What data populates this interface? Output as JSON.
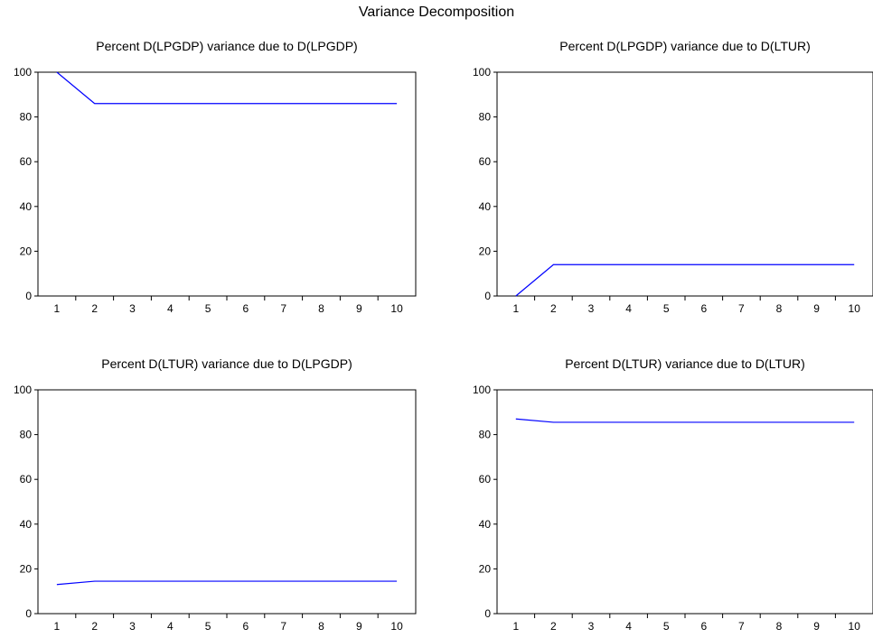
{
  "title": "Variance Decomposition",
  "colors": {
    "line": "#0000ff",
    "axis": "#000000"
  },
  "chart_data": [
    {
      "type": "line",
      "title": "Percent D(LPGDP) variance due to D(LPGDP)",
      "categories": [
        "1",
        "2",
        "3",
        "4",
        "5",
        "6",
        "7",
        "8",
        "9",
        "10"
      ],
      "ylim": [
        0,
        100
      ],
      "yticks": [
        "0",
        "20",
        "40",
        "60",
        "80",
        "100"
      ],
      "series": [
        {
          "values": [
            100,
            86,
            86,
            86,
            86,
            86,
            86,
            86,
            86,
            86
          ]
        }
      ]
    },
    {
      "type": "line",
      "title": "Percent D(LPGDP) variance due to D(LTUR)",
      "categories": [
        "1",
        "2",
        "3",
        "4",
        "5",
        "6",
        "7",
        "8",
        "9",
        "10"
      ],
      "ylim": [
        0,
        100
      ],
      "yticks": [
        "0",
        "20",
        "40",
        "60",
        "80",
        "100"
      ],
      "series": [
        {
          "values": [
            0,
            14,
            14,
            14,
            14,
            14,
            14,
            14,
            14,
            14
          ]
        }
      ]
    },
    {
      "type": "line",
      "title": "Percent D(LTUR) variance due to D(LPGDP)",
      "categories": [
        "1",
        "2",
        "3",
        "4",
        "5",
        "6",
        "7",
        "8",
        "9",
        "10"
      ],
      "ylim": [
        0,
        100
      ],
      "yticks": [
        "0",
        "20",
        "40",
        "60",
        "80",
        "100"
      ],
      "series": [
        {
          "values": [
            13,
            14.5,
            14.5,
            14.5,
            14.5,
            14.5,
            14.5,
            14.5,
            14.5,
            14.5
          ]
        }
      ]
    },
    {
      "type": "line",
      "title": "Percent D(LTUR) variance due to D(LTUR)",
      "categories": [
        "1",
        "2",
        "3",
        "4",
        "5",
        "6",
        "7",
        "8",
        "9",
        "10"
      ],
      "ylim": [
        0,
        100
      ],
      "yticks": [
        "0",
        "20",
        "40",
        "60",
        "80",
        "100"
      ],
      "series": [
        {
          "values": [
            87,
            85.5,
            85.5,
            85.5,
            85.5,
            85.5,
            85.5,
            85.5,
            85.5,
            85.5
          ]
        }
      ]
    }
  ]
}
